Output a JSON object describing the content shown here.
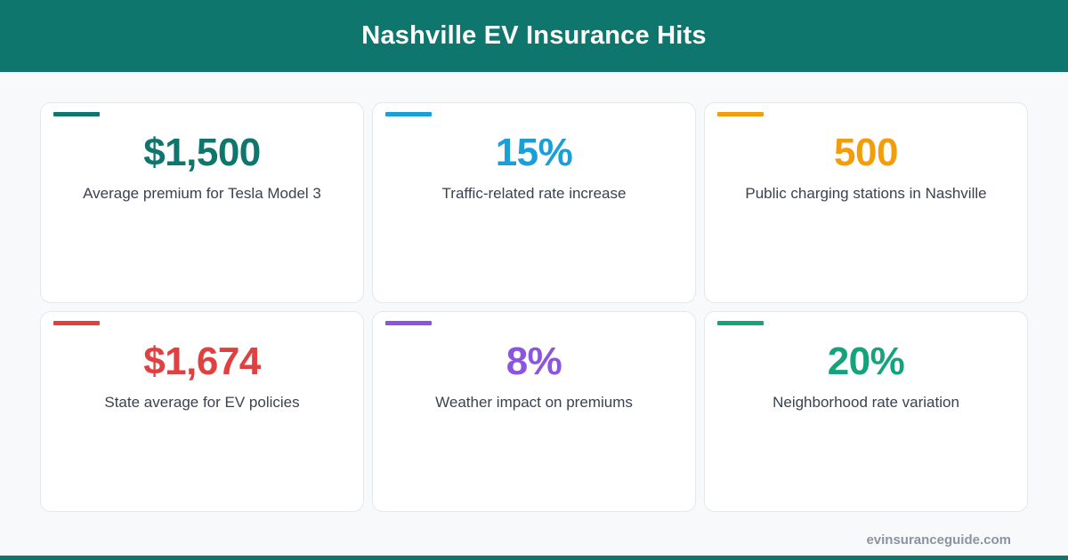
{
  "header": {
    "title": "Nashville EV Insurance Hits",
    "color": "#0f766e"
  },
  "cards": [
    {
      "value": "$1,500",
      "label": "Average premium for Tesla Model 3",
      "color": "#0f766e"
    },
    {
      "value": "15%",
      "label": "Traffic-related rate increase",
      "color": "#1a9fd8"
    },
    {
      "value": "500",
      "label": "Public charging stations in Nashville",
      "color": "#f29d0c"
    },
    {
      "value": "$1,674",
      "label": "State average for EV policies",
      "color": "#e0403f"
    },
    {
      "value": "8%",
      "label": "Weather impact on premiums",
      "color": "#8a55e0"
    },
    {
      "value": "20%",
      "label": "Neighborhood rate variation",
      "color": "#14a37c"
    }
  ],
  "footer": {
    "site": "evinsuranceguide.com"
  }
}
